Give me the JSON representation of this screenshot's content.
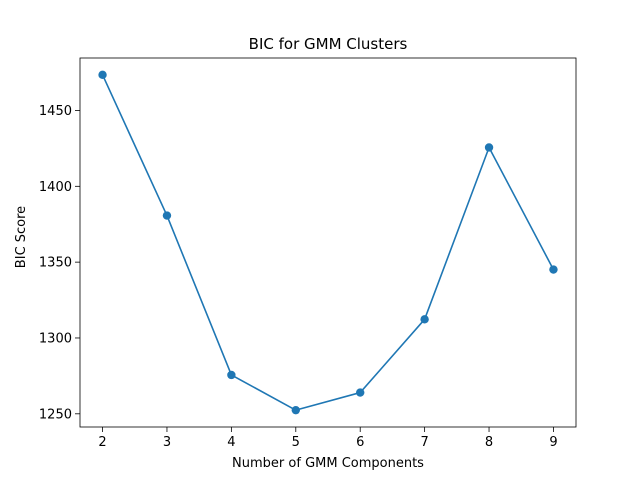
{
  "chart_data": {
    "type": "line",
    "title": "BIC for GMM Clusters",
    "xlabel": "Number of GMM Components",
    "ylabel": "BIC Score",
    "x": [
      2,
      3,
      4,
      5,
      6,
      7,
      8,
      9
    ],
    "series": [
      {
        "values": [
          1473.5,
          1380.7,
          1275.6,
          1252.4,
          1264.0,
          1312.3,
          1425.6,
          1345.1
        ],
        "color": "#1f77b4",
        "marker": "circle"
      }
    ],
    "xticks": [
      2,
      3,
      4,
      5,
      6,
      7,
      8,
      9
    ],
    "yticks": [
      1250,
      1300,
      1350,
      1400,
      1450
    ],
    "xlim": [
      1.65,
      9.35
    ],
    "ylim": [
      1241.3,
      1484.6
    ],
    "grid": false,
    "legend": "none"
  }
}
